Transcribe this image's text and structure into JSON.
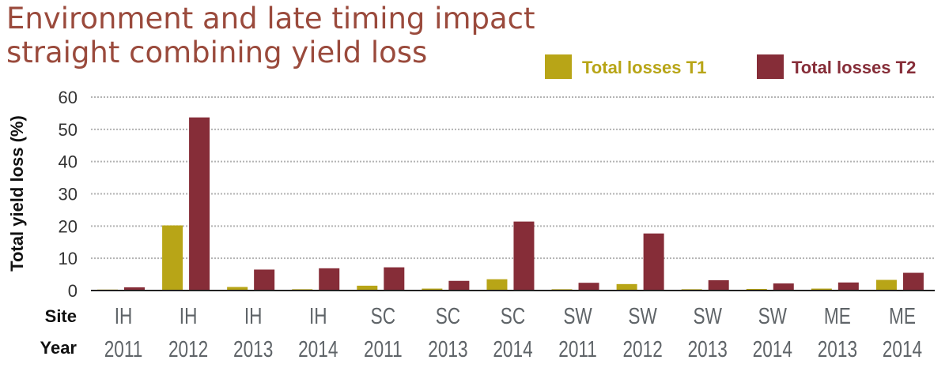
{
  "chart_data": {
    "type": "bar",
    "title_lines": [
      "Environment and late timing impact",
      "straight combining yield loss"
    ],
    "ylabel": "Total yield loss (%)",
    "ylim": [
      0,
      60
    ],
    "yticks": [
      0,
      10,
      20,
      30,
      40,
      50,
      60
    ],
    "grid": true,
    "legend_position": "top-right",
    "row_labels": {
      "site": "Site",
      "year": "Year"
    },
    "sites": [
      "IH",
      "IH",
      "IH",
      "IH",
      "SC",
      "SC",
      "SC",
      "SW",
      "SW",
      "SW",
      "SW",
      "ME",
      "ME"
    ],
    "years": [
      "2011",
      "2012",
      "2013",
      "2014",
      "2011",
      "2013",
      "2014",
      "2011",
      "2012",
      "2013",
      "2014",
      "2013",
      "2014"
    ],
    "series": [
      {
        "name": "Total losses T1",
        "color": "#b8a517",
        "values": [
          0.3,
          20.2,
          1.1,
          0.4,
          1.5,
          0.6,
          3.5,
          0.4,
          2.0,
          0.4,
          0.5,
          0.6,
          3.3
        ]
      },
      {
        "name": "Total losses T2",
        "color": "#862d38",
        "values": [
          1.0,
          53.7,
          6.5,
          6.9,
          7.2,
          3.0,
          21.4,
          2.4,
          17.7,
          3.2,
          2.2,
          2.5,
          5.5
        ]
      }
    ]
  }
}
